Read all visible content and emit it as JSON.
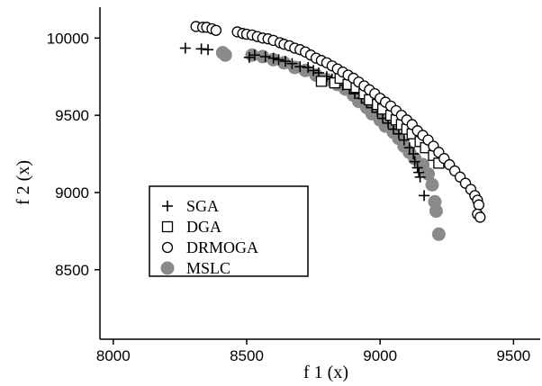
{
  "chart_data": {
    "type": "scatter",
    "xlabel": "f 1 (x)",
    "ylabel": "f 2 (x)",
    "xlim": [
      7950,
      9600
    ],
    "ylim": [
      8050,
      10200
    ],
    "xticks": [
      "8000",
      "8500",
      "9000",
      "9500"
    ],
    "yticks": [
      "8500",
      "9000",
      "9500",
      "10000"
    ],
    "legend": "middle-left",
    "series": [
      {
        "name": "SGA",
        "marker": "plus",
        "color": "#000000",
        "points": [
          [
            8270,
            9935
          ],
          [
            8330,
            9930
          ],
          [
            8355,
            9925
          ],
          [
            8510,
            9875
          ],
          [
            8530,
            9890
          ],
          [
            8570,
            9880
          ],
          [
            8600,
            9870
          ],
          [
            8620,
            9860
          ],
          [
            8645,
            9850
          ],
          [
            8670,
            9835
          ],
          [
            8700,
            9815
          ],
          [
            8730,
            9810
          ],
          [
            8750,
            9790
          ],
          [
            8770,
            9775
          ],
          [
            8800,
            9750
          ],
          [
            8820,
            9735
          ],
          [
            8840,
            9715
          ],
          [
            8860,
            9695
          ],
          [
            8885,
            9670
          ],
          [
            8905,
            9640
          ],
          [
            8930,
            9610
          ],
          [
            8950,
            9580
          ],
          [
            8970,
            9550
          ],
          [
            8990,
            9520
          ],
          [
            9010,
            9480
          ],
          [
            9030,
            9450
          ],
          [
            9050,
            9410
          ],
          [
            9070,
            9380
          ],
          [
            9090,
            9340
          ],
          [
            9110,
            9290
          ],
          [
            9125,
            9250
          ],
          [
            9130,
            9200
          ],
          [
            9140,
            9160
          ],
          [
            9145,
            9130
          ],
          [
            9150,
            9100
          ],
          [
            9165,
            8980
          ]
        ]
      },
      {
        "name": "DGA",
        "marker": "square",
        "color": "#000000",
        "points": [
          [
            8780,
            9720
          ],
          [
            8830,
            9710
          ],
          [
            8850,
            9740
          ],
          [
            8880,
            9700
          ],
          [
            8910,
            9680
          ],
          [
            8940,
            9640
          ],
          [
            8960,
            9600
          ],
          [
            8990,
            9570
          ],
          [
            9010,
            9540
          ],
          [
            9040,
            9500
          ],
          [
            9060,
            9470
          ],
          [
            9080,
            9440
          ],
          [
            9100,
            9410
          ],
          [
            9120,
            9380
          ],
          [
            9150,
            9330
          ],
          [
            9170,
            9290
          ],
          [
            9200,
            9240
          ],
          [
            9220,
            9190
          ]
        ]
      },
      {
        "name": "DRMOGA",
        "marker": "circle",
        "color": "#000000",
        "points": [
          [
            8310,
            10075
          ],
          [
            8335,
            10070
          ],
          [
            8350,
            10070
          ],
          [
            8370,
            10060
          ],
          [
            8385,
            10050
          ],
          [
            8465,
            10040
          ],
          [
            8485,
            10030
          ],
          [
            8500,
            10025
          ],
          [
            8520,
            10020
          ],
          [
            8540,
            10010
          ],
          [
            8560,
            10000
          ],
          [
            8580,
            9995
          ],
          [
            8600,
            9985
          ],
          [
            8625,
            9970
          ],
          [
            8640,
            9960
          ],
          [
            8660,
            9950
          ],
          [
            8680,
            9935
          ],
          [
            8700,
            9925
          ],
          [
            8720,
            9910
          ],
          [
            8740,
            9890
          ],
          [
            8760,
            9870
          ],
          [
            8780,
            9855
          ],
          [
            8800,
            9840
          ],
          [
            8820,
            9820
          ],
          [
            8840,
            9800
          ],
          [
            8860,
            9780
          ],
          [
            8880,
            9760
          ],
          [
            8900,
            9740
          ],
          [
            8920,
            9715
          ],
          [
            8940,
            9690
          ],
          [
            8960,
            9665
          ],
          [
            8980,
            9640
          ],
          [
            9000,
            9610
          ],
          [
            9020,
            9585
          ],
          [
            9040,
            9560
          ],
          [
            9060,
            9530
          ],
          [
            9080,
            9500
          ],
          [
            9100,
            9470
          ],
          [
            9120,
            9440
          ],
          [
            9140,
            9400
          ],
          [
            9160,
            9370
          ],
          [
            9180,
            9340
          ],
          [
            9200,
            9300
          ],
          [
            9220,
            9260
          ],
          [
            9240,
            9220
          ],
          [
            9260,
            9180
          ],
          [
            9280,
            9140
          ],
          [
            9300,
            9100
          ],
          [
            9320,
            9060
          ],
          [
            9340,
            9020
          ],
          [
            9355,
            8980
          ],
          [
            9365,
            8950
          ],
          [
            9370,
            8920
          ],
          [
            9365,
            8860
          ],
          [
            9375,
            8840
          ]
        ]
      },
      {
        "name": "MSLC",
        "marker": "filled-circle",
        "color": "#8a8a8a",
        "points": [
          [
            8410,
            9905
          ],
          [
            8420,
            9890
          ],
          [
            8520,
            9890
          ],
          [
            8560,
            9880
          ],
          [
            8600,
            9860
          ],
          [
            8640,
            9840
          ],
          [
            8680,
            9810
          ],
          [
            8720,
            9790
          ],
          [
            8760,
            9760
          ],
          [
            8800,
            9730
          ],
          [
            8840,
            9700
          ],
          [
            8870,
            9670
          ],
          [
            8900,
            9630
          ],
          [
            8920,
            9590
          ],
          [
            8950,
            9550
          ],
          [
            8970,
            9510
          ],
          [
            9000,
            9470
          ],
          [
            9020,
            9430
          ],
          [
            9050,
            9390
          ],
          [
            9070,
            9350
          ],
          [
            9090,
            9300
          ],
          [
            9110,
            9260
          ],
          [
            9130,
            9220
          ],
          [
            9160,
            9180
          ],
          [
            9180,
            9120
          ],
          [
            9195,
            9050
          ],
          [
            9205,
            8940
          ],
          [
            9210,
            8880
          ],
          [
            9220,
            8730
          ]
        ]
      }
    ]
  }
}
